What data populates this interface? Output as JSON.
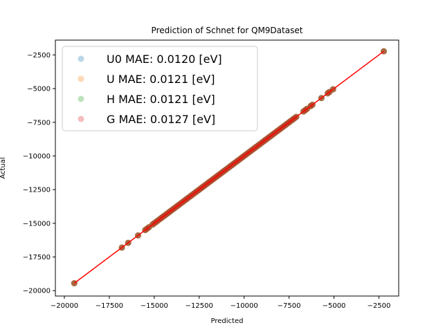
{
  "chart_data": {
    "type": "scatter",
    "title": "Prediction of Schnet for QM9Dataset",
    "xlabel": "Predicted",
    "ylabel": "Actual",
    "xlim": [
      -20500,
      -1400
    ],
    "ylim": [
      -20400,
      -1400
    ],
    "xticks": [
      -20000,
      -17500,
      -15000,
      -12500,
      -10000,
      -7500,
      -5000,
      -2500
    ],
    "yticks": [
      -20000,
      -17500,
      -15000,
      -12500,
      -10000,
      -7500,
      -5000,
      -2500
    ],
    "xtick_labels": [
      "−20000",
      "−17500",
      "−15000",
      "−12500",
      "−10000",
      "−7500",
      "−5000",
      "−2500"
    ],
    "ytick_labels": [
      "−20000",
      "−17500",
      "−15000",
      "−12500",
      "−10000",
      "−7500",
      "−5000",
      "−2500"
    ],
    "grid": false,
    "legend_position": "top-left",
    "reference_line": {
      "color": "#ff0000",
      "from": [
        -19450,
        -19450
      ],
      "to": [
        -2230,
        -2230
      ]
    },
    "series": [
      {
        "name": "U0 MAE: 0.0120 [eV]",
        "color": "#1f77b4",
        "alpha": 0.3
      },
      {
        "name": "U MAE: 0.0121 [eV]",
        "color": "#ff7f0e",
        "alpha": 0.3
      },
      {
        "name": "H MAE: 0.0121 [eV]",
        "color": "#2ca02c",
        "alpha": 0.3
      },
      {
        "name": "G MAE: 0.0127 [eV]",
        "color": "#d62728",
        "alpha": 0.3
      }
    ],
    "points": [
      -19450,
      -16800,
      -16450,
      -15900,
      -15500,
      -15400,
      -15300,
      -15100,
      -15000,
      -14900,
      -14800,
      -14700,
      -14600,
      -14500,
      -14400,
      -14300,
      -14200,
      -14100,
      -14000,
      -13900,
      -13800,
      -13700,
      -13600,
      -13500,
      -13400,
      -13300,
      -13200,
      -13100,
      -13000,
      -12900,
      -12800,
      -12700,
      -12600,
      -12500,
      -12400,
      -12300,
      -12200,
      -12100,
      -12000,
      -11900,
      -11800,
      -11700,
      -11600,
      -11500,
      -11400,
      -11300,
      -11200,
      -11100,
      -11000,
      -10900,
      -10800,
      -10700,
      -10600,
      -10500,
      -10400,
      -10300,
      -10200,
      -10100,
      -10000,
      -9900,
      -9800,
      -9700,
      -9600,
      -9500,
      -9400,
      -9300,
      -9200,
      -9100,
      -9000,
      -8900,
      -8800,
      -8700,
      -8600,
      -8500,
      -8400,
      -8300,
      -8200,
      -8100,
      -8000,
      -7900,
      -7800,
      -7700,
      -7600,
      -7500,
      -7400,
      -7300,
      -7200,
      -7100,
      -6700,
      -6600,
      -6500,
      -6300,
      -6200,
      -5700,
      -5350,
      -5250,
      -5050,
      -2230
    ]
  }
}
